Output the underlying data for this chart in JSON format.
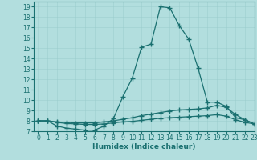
{
  "title": "",
  "xlabel": "Humidex (Indice chaleur)",
  "background_color": "#b2dede",
  "line_color": "#1a7070",
  "xlim": [
    -0.5,
    23
  ],
  "ylim": [
    7,
    19.5
  ],
  "xticks": [
    0,
    1,
    2,
    3,
    4,
    5,
    6,
    7,
    8,
    9,
    10,
    11,
    12,
    13,
    14,
    15,
    16,
    17,
    18,
    19,
    20,
    21,
    22,
    23
  ],
  "yticks": [
    7,
    8,
    9,
    10,
    11,
    12,
    13,
    14,
    15,
    16,
    17,
    18,
    19
  ],
  "curve1_x": [
    0,
    1,
    2,
    3,
    4,
    5,
    6,
    7,
    8,
    9,
    10,
    11,
    12,
    13,
    14,
    15,
    16,
    17,
    18,
    19,
    20,
    21,
    22,
    23
  ],
  "curve1_y": [
    8.0,
    8.0,
    7.5,
    7.3,
    7.2,
    7.1,
    7.1,
    7.5,
    8.2,
    10.3,
    12.1,
    15.1,
    15.4,
    19.0,
    18.9,
    17.2,
    15.9,
    13.1,
    9.8,
    9.8,
    9.4,
    8.3,
    8.1,
    7.7
  ],
  "curve2_x": [
    0,
    1,
    2,
    3,
    4,
    5,
    6,
    7,
    8,
    9,
    10,
    11,
    12,
    13,
    14,
    15,
    16,
    17,
    18,
    19,
    20,
    21,
    22,
    23
  ],
  "curve2_y": [
    8.0,
    8.0,
    7.9,
    7.85,
    7.8,
    7.8,
    7.8,
    7.9,
    8.0,
    8.15,
    8.3,
    8.5,
    8.65,
    8.8,
    8.95,
    9.05,
    9.1,
    9.15,
    9.25,
    9.5,
    9.3,
    8.6,
    8.1,
    7.7
  ],
  "curve3_x": [
    0,
    1,
    2,
    3,
    4,
    5,
    6,
    7,
    8,
    9,
    10,
    11,
    12,
    13,
    14,
    15,
    16,
    17,
    18,
    19,
    20,
    21,
    22,
    23
  ],
  "curve3_y": [
    8.0,
    8.0,
    7.85,
    7.75,
    7.7,
    7.65,
    7.65,
    7.7,
    7.8,
    7.9,
    7.95,
    8.05,
    8.15,
    8.25,
    8.3,
    8.35,
    8.4,
    8.45,
    8.5,
    8.6,
    8.45,
    8.1,
    7.85,
    7.7
  ]
}
